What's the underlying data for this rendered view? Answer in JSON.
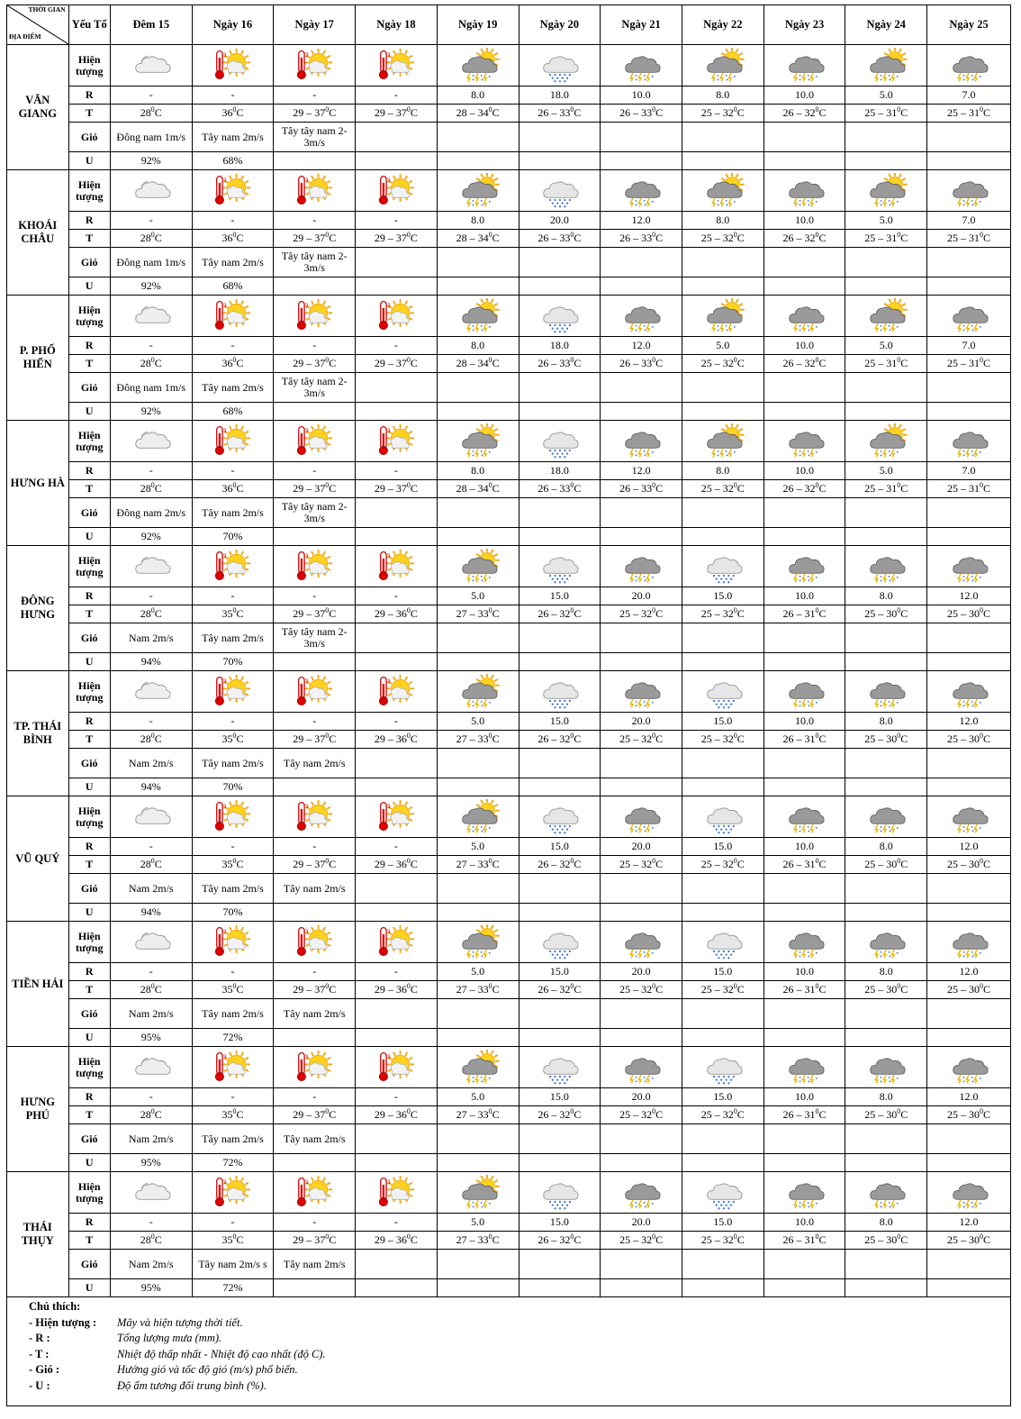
{
  "corner": {
    "time_label": "THỜI GIAN",
    "place_label": "ĐỊA ĐIỂM"
  },
  "element_header": "Yếu Tố",
  "days": [
    "Đêm 15",
    "Ngày 16",
    "Ngày 17",
    "Ngày 18",
    "Ngày 19",
    "Ngày 20",
    "Ngày 21",
    "Ngày 22",
    "Ngày 23",
    "Ngày 24",
    "Ngày 25"
  ],
  "row_labels": {
    "phenomenon": "Hiện tượng",
    "rain": "R",
    "temp": "T",
    "wind": "Gió",
    "humidity": "U"
  },
  "temp_unit": "0C",
  "locations": [
    {
      "name": "VĂN GIANG",
      "icons": [
        "cloudy-night-icon",
        "hot-sun-thermometer-icon",
        "hot-sun-thermometer-icon",
        "hot-sun-thermometer-icon",
        "sun-thunderstorm-icon",
        "rain-cloud-icon",
        "thunderstorm-icon",
        "sun-thunderstorm-icon",
        "thunderstorm-icon",
        "sun-thunderstorm-icon",
        "thunderstorm-icon"
      ],
      "rain": [
        "-",
        "-",
        "-",
        "-",
        "8.0",
        "18.0",
        "10.0",
        "8.0",
        "10.0",
        "5.0",
        "7.0"
      ],
      "temp": [
        "28",
        "36",
        "29 – 37",
        "29 – 37",
        "28 – 34",
        "26 – 33",
        "26 – 33",
        "25 – 32",
        "26 – 32",
        "25 – 31",
        "25 – 31"
      ],
      "wind": [
        "Đông nam 1m/s",
        "Tây nam 2m/s",
        "Tây tây nam 2-3m/s"
      ],
      "humidity": [
        "92%",
        "68%"
      ]
    },
    {
      "name": "KHOÁI CHÂU",
      "icons": [
        "cloudy-night-icon",
        "hot-sun-thermometer-icon",
        "hot-sun-thermometer-icon",
        "hot-sun-thermometer-icon",
        "sun-thunderstorm-icon",
        "rain-cloud-icon",
        "thunderstorm-icon",
        "sun-thunderstorm-icon",
        "thunderstorm-icon",
        "sun-thunderstorm-icon",
        "thunderstorm-icon"
      ],
      "rain": [
        "-",
        "-",
        "-",
        "-",
        "8.0",
        "20.0",
        "12.0",
        "8.0",
        "10.0",
        "5.0",
        "7.0"
      ],
      "temp": [
        "28",
        "36",
        "29 – 37",
        "29 – 37",
        "28 – 34",
        "26 – 33",
        "26 – 33",
        "25 – 32",
        "26 – 32",
        "25 – 31",
        "25 – 31"
      ],
      "wind": [
        "Đông nam 1m/s",
        "Tây nam 2m/s",
        "Tây tây nam 2-3m/s"
      ],
      "humidity": [
        "92%",
        "68%"
      ]
    },
    {
      "name": "P. PHỐ HIẾN",
      "icons": [
        "cloudy-night-icon",
        "hot-sun-thermometer-icon",
        "hot-sun-thermometer-icon",
        "hot-sun-thermometer-icon",
        "sun-thunderstorm-icon",
        "rain-cloud-icon",
        "thunderstorm-icon",
        "sun-thunderstorm-icon",
        "thunderstorm-icon",
        "sun-thunderstorm-icon",
        "thunderstorm-icon"
      ],
      "rain": [
        "-",
        "-",
        "-",
        "-",
        "8.0",
        "18.0",
        "12.0",
        "5.0",
        "10.0",
        "5.0",
        "7.0"
      ],
      "temp": [
        "28",
        "36",
        "29 – 37",
        "29 – 37",
        "28 – 34",
        "26 – 33",
        "26 – 33",
        "25 – 32",
        "26 – 32",
        "25 – 31",
        "25 – 31"
      ],
      "wind": [
        "Đông nam 1m/s",
        "Tây nam 2m/s",
        "Tây tây nam 2-3m/s"
      ],
      "humidity": [
        "92%",
        "68%"
      ]
    },
    {
      "name": "HƯNG HÀ",
      "icons": [
        "cloudy-night-icon",
        "hot-sun-thermometer-icon",
        "hot-sun-thermometer-icon",
        "hot-sun-thermometer-icon",
        "sun-thunderstorm-icon",
        "rain-cloud-icon",
        "thunderstorm-icon",
        "sun-thunderstorm-icon",
        "thunderstorm-icon",
        "sun-thunderstorm-icon",
        "thunderstorm-icon"
      ],
      "rain": [
        "-",
        "-",
        "-",
        "-",
        "8.0",
        "18.0",
        "12.0",
        "8.0",
        "10.0",
        "5.0",
        "7.0"
      ],
      "temp": [
        "28",
        "36",
        "29 – 37",
        "29 – 37",
        "28 – 34",
        "26 – 33",
        "26 – 33",
        "25 – 32",
        "26 – 32",
        "25 – 31",
        "25 – 31"
      ],
      "wind": [
        "Đông nam 2m/s",
        "Tây nam 2m/s",
        "Tây tây nam 2-3m/s"
      ],
      "humidity": [
        "92%",
        "70%"
      ]
    },
    {
      "name": "ĐÔNG HƯNG",
      "icons": [
        "cloudy-night-icon",
        "hot-sun-thermometer-icon",
        "hot-sun-thermometer-icon",
        "hot-sun-thermometer-icon",
        "sun-thunderstorm-icon",
        "rain-cloud-icon",
        "thunderstorm-icon",
        "rain-cloud-icon",
        "thunderstorm-icon",
        "thunderstorm-icon",
        "thunderstorm-icon"
      ],
      "rain": [
        "-",
        "-",
        "-",
        "-",
        "5.0",
        "15.0",
        "20.0",
        "15.0",
        "10.0",
        "8.0",
        "12.0"
      ],
      "temp": [
        "28",
        "35",
        "29 – 37",
        "29 – 36",
        "27 – 33",
        "26 – 32",
        "25 – 32",
        "25 – 32",
        "26 – 31",
        "25 – 30",
        "25 – 30"
      ],
      "wind": [
        "Nam 2m/s",
        "Tây nam 2m/s",
        "Tây tây nam 2-3m/s"
      ],
      "humidity": [
        "94%",
        "70%"
      ]
    },
    {
      "name": "TP. THÁI BÌNH",
      "icons": [
        "cloudy-night-icon",
        "hot-sun-thermometer-icon",
        "hot-sun-thermometer-icon",
        "hot-sun-thermometer-icon",
        "sun-thunderstorm-icon",
        "rain-cloud-icon",
        "thunderstorm-icon",
        "rain-cloud-icon",
        "thunderstorm-icon",
        "thunderstorm-icon",
        "thunderstorm-icon"
      ],
      "rain": [
        "-",
        "-",
        "-",
        "-",
        "5.0",
        "15.0",
        "20.0",
        "15.0",
        "10.0",
        "8.0",
        "12.0"
      ],
      "temp": [
        "28",
        "35",
        "29 – 37",
        "29 – 36",
        "27 – 33",
        "26 – 32",
        "25 – 32",
        "25 – 32",
        "26 – 31",
        "25 – 30",
        "25 – 30"
      ],
      "wind": [
        "Nam 2m/s",
        "Tây nam 2m/s",
        "Tây nam 2m/s"
      ],
      "humidity": [
        "94%",
        "70%"
      ]
    },
    {
      "name": "VŨ QUÝ",
      "icons": [
        "cloudy-night-icon",
        "hot-sun-thermometer-icon",
        "hot-sun-thermometer-icon",
        "hot-sun-thermometer-icon",
        "sun-thunderstorm-icon",
        "rain-cloud-icon",
        "thunderstorm-icon",
        "rain-cloud-icon",
        "thunderstorm-icon",
        "thunderstorm-icon",
        "thunderstorm-icon"
      ],
      "rain": [
        "-",
        "-",
        "-",
        "-",
        "5.0",
        "15.0",
        "20.0",
        "15.0",
        "10.0",
        "8.0",
        "12.0"
      ],
      "temp": [
        "28",
        "35",
        "29 – 37",
        "29 – 36",
        "27 – 33",
        "26 – 32",
        "25 – 32",
        "25 – 32",
        "26 – 31",
        "25 – 30",
        "25 – 30"
      ],
      "wind": [
        "Nam 2m/s",
        "Tây nam 2m/s",
        "Tây nam 2m/s"
      ],
      "humidity": [
        "94%",
        "70%"
      ]
    },
    {
      "name": "TIỀN HẢI",
      "icons": [
        "cloudy-night-icon",
        "hot-sun-thermometer-icon",
        "hot-sun-thermometer-icon",
        "hot-sun-thermometer-icon",
        "sun-thunderstorm-icon",
        "rain-cloud-icon",
        "thunderstorm-icon",
        "rain-cloud-icon",
        "thunderstorm-icon",
        "thunderstorm-icon",
        "thunderstorm-icon"
      ],
      "rain": [
        "-",
        "-",
        "-",
        "-",
        "5.0",
        "15.0",
        "20.0",
        "15.0",
        "10.0",
        "8.0",
        "12.0"
      ],
      "temp": [
        "28",
        "35",
        "29 – 37",
        "29 – 36",
        "27 – 33",
        "26 – 32",
        "25 – 32",
        "25 – 32",
        "26 – 31",
        "25 – 30",
        "25 – 30"
      ],
      "wind": [
        "Nam 2m/s",
        "Tây nam 2m/s",
        "Tây nam 2m/s"
      ],
      "humidity": [
        "95%",
        "72%"
      ]
    },
    {
      "name": "HƯNG PHÚ",
      "icons": [
        "cloudy-night-icon",
        "hot-sun-thermometer-icon",
        "hot-sun-thermometer-icon",
        "hot-sun-thermometer-icon",
        "sun-thunderstorm-icon",
        "rain-cloud-icon",
        "thunderstorm-icon",
        "rain-cloud-icon",
        "thunderstorm-icon",
        "thunderstorm-icon",
        "thunderstorm-icon"
      ],
      "rain": [
        "-",
        "-",
        "-",
        "-",
        "5.0",
        "15.0",
        "20.0",
        "15.0",
        "10.0",
        "8.0",
        "12.0"
      ],
      "temp": [
        "28",
        "35",
        "29 – 37",
        "29 – 36",
        "27 – 33",
        "26 – 32",
        "25 – 32",
        "25 – 32",
        "26 – 31",
        "25 – 30",
        "25 – 30"
      ],
      "wind": [
        "Nam 2m/s",
        "Tây nam 2m/s",
        "Tây nam 2m/s"
      ],
      "humidity": [
        "95%",
        "72%"
      ]
    },
    {
      "name": "THÁI THỤY",
      "icons": [
        "cloudy-night-icon",
        "hot-sun-thermometer-icon",
        "hot-sun-thermometer-icon",
        "hot-sun-thermometer-icon",
        "sun-thunderstorm-icon",
        "rain-cloud-icon",
        "thunderstorm-icon",
        "rain-cloud-icon",
        "thunderstorm-icon",
        "thunderstorm-icon",
        "thunderstorm-icon"
      ],
      "rain": [
        "-",
        "-",
        "-",
        "-",
        "5.0",
        "15.0",
        "20.0",
        "15.0",
        "10.0",
        "8.0",
        "12.0"
      ],
      "temp": [
        "28",
        "35",
        "29 – 37",
        "29 – 36",
        "27 – 33",
        "26 – 32",
        "25 – 32",
        "25 – 32",
        "26 – 31",
        "25 – 30",
        "25 – 30"
      ],
      "wind": [
        "Nam 2m/s",
        "Tây nam 2m/s s",
        "Tây nam 2m/s"
      ],
      "humidity": [
        "95%",
        "72%"
      ]
    }
  ],
  "legend": {
    "title": "Chú thích:",
    "items": [
      {
        "key": "- Hiện tượng :",
        "desc": "Mây và hiện tượng thời tiết."
      },
      {
        "key": "- R          :",
        "desc": "Tổng lượng mưa (mm)."
      },
      {
        "key": "- T          :",
        "desc": "Nhiệt độ thấp nhất - Nhiệt độ cao nhất (độ C)."
      },
      {
        "key": "- Gió        :",
        "desc": "Hướng gió và tốc độ gió (m/s) phổ biến."
      },
      {
        "key": "- U          :",
        "desc": "Độ ẩm tương đối trung bình (%)."
      }
    ]
  }
}
